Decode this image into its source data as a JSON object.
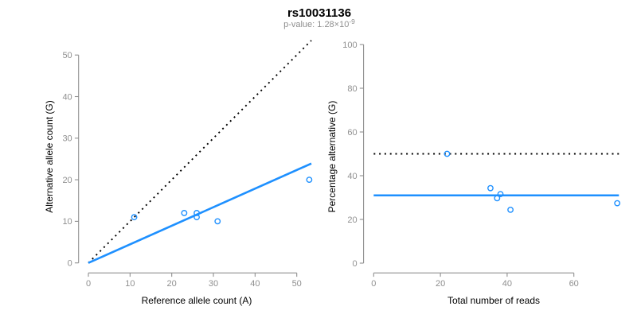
{
  "header": {
    "title": "rs10031136",
    "pvalue_text": "p-value: 1.28×10",
    "pvalue_exponent": "-9"
  },
  "colors": {
    "accent_blue": "#1E90FF",
    "reference_black": "#000000",
    "axis_gray": "#8F8F8F",
    "label_black": "#000000",
    "subtitle_gray": "#8F8F8F",
    "background": "#FFFFFF"
  },
  "chart_data": [
    {
      "type": "scatter",
      "panel": "left",
      "xlabel": "Reference allele count (A)",
      "ylabel": "Alternative allele count (G)",
      "xlim": [
        0,
        53.5
      ],
      "ylim": [
        0,
        53.5
      ],
      "xticks": [
        0,
        10,
        20,
        30,
        40,
        50
      ],
      "yticks": [
        0,
        10,
        20,
        30,
        40,
        50
      ],
      "grid": false,
      "legend": "none",
      "points": [
        {
          "x": 11,
          "y": 11
        },
        {
          "x": 23,
          "y": 12
        },
        {
          "x": 26,
          "y": 11
        },
        {
          "x": 26,
          "y": 12
        },
        {
          "x": 31,
          "y": 10
        },
        {
          "x": 53,
          "y": 20
        }
      ],
      "lines": [
        {
          "name": "identity-line",
          "style": "dotted",
          "color": "#000000",
          "x": [
            0,
            53.5
          ],
          "y": [
            0,
            53.5
          ]
        },
        {
          "name": "fit-line",
          "style": "solid",
          "color": "#1E90FF",
          "x": [
            0,
            53.5
          ],
          "y": [
            0,
            23.9
          ]
        }
      ]
    },
    {
      "type": "scatter",
      "panel": "right",
      "xlabel": "Total number of reads",
      "ylabel": "Percentage alternative (G)",
      "xlim": [
        0,
        73.5
      ],
      "ylim": [
        0,
        100
      ],
      "xticks": [
        0,
        20,
        40,
        60
      ],
      "yticks": [
        0,
        20,
        40,
        60,
        80,
        100
      ],
      "grid": false,
      "legend": "none",
      "points": [
        {
          "x": 22,
          "y": 50.0
        },
        {
          "x": 35,
          "y": 34.3
        },
        {
          "x": 37,
          "y": 29.7
        },
        {
          "x": 38,
          "y": 31.6
        },
        {
          "x": 41,
          "y": 24.4
        },
        {
          "x": 73,
          "y": 27.4
        }
      ],
      "lines": [
        {
          "name": "fifty-percent-line",
          "style": "dotted",
          "color": "#000000",
          "x": [
            0,
            73.5
          ],
          "y": [
            50,
            50
          ]
        },
        {
          "name": "mean-percentage-line",
          "style": "solid",
          "color": "#1E90FF",
          "x": [
            0,
            73.5
          ],
          "y": [
            31,
            31
          ]
        }
      ]
    }
  ]
}
